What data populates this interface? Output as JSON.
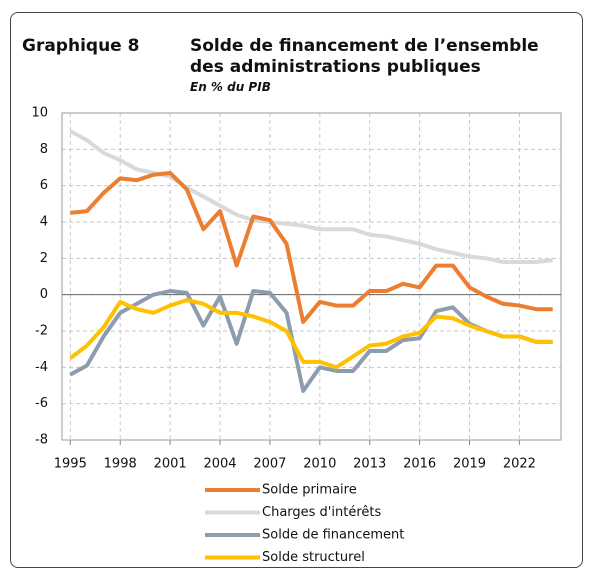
{
  "chart_data": {
    "type": "line",
    "label": "Graphique 8",
    "title": "Solde de financement de l’ensemble des administrations publiques",
    "subtitle": "En % du PIB",
    "x": [
      1995,
      1996,
      1997,
      1998,
      1999,
      2000,
      2001,
      2002,
      2003,
      2004,
      2005,
      2006,
      2007,
      2008,
      2009,
      2010,
      2011,
      2012,
      2013,
      2014,
      2015,
      2016,
      2017,
      2018,
      2019,
      2020,
      2021,
      2022,
      2023,
      2024
    ],
    "xlim": [
      1994.5,
      2024.5
    ],
    "xticks": [
      1995,
      1998,
      2001,
      2004,
      2007,
      2010,
      2013,
      2016,
      2019,
      2022
    ],
    "ylim": [
      -8,
      10
    ],
    "yticks": [
      -8,
      -6,
      -4,
      -2,
      0,
      2,
      4,
      6,
      8,
      10
    ],
    "grid": true,
    "legend": "bottom",
    "series": [
      {
        "name": "Solde primaire",
        "color": "#ed7d31",
        "values": [
          4.5,
          4.6,
          5.6,
          6.4,
          6.3,
          6.6,
          6.7,
          5.8,
          3.6,
          4.6,
          1.6,
          4.3,
          4.1,
          2.8,
          -1.5,
          -0.4,
          -0.6,
          -0.6,
          0.2,
          0.2,
          0.6,
          0.4,
          1.6,
          1.6,
          0.4,
          -0.1,
          -0.5,
          -0.6,
          -0.8,
          -0.8
        ]
      },
      {
        "name": "Charges d'intérêts",
        "color": "#d9d9d9",
        "values": [
          9.0,
          8.5,
          7.8,
          7.4,
          6.9,
          6.7,
          6.5,
          5.9,
          5.4,
          4.9,
          4.4,
          4.1,
          4.0,
          3.9,
          3.8,
          3.6,
          3.6,
          3.6,
          3.3,
          3.2,
          3.0,
          2.8,
          2.5,
          2.3,
          2.1,
          2.0,
          1.8,
          1.8,
          1.8,
          1.9
        ]
      },
      {
        "name": "Solde de financement",
        "color": "#8e9cb0",
        "values": [
          -4.4,
          -3.9,
          -2.3,
          -1.0,
          -0.5,
          0.0,
          0.2,
          0.1,
          -1.7,
          -0.1,
          -2.7,
          0.2,
          0.1,
          -1.0,
          -5.3,
          -4.0,
          -4.2,
          -4.2,
          -3.1,
          -3.1,
          -2.5,
          -2.4,
          -0.9,
          -0.7,
          -1.6,
          -2.0,
          -2.3,
          -2.3,
          -2.6,
          -2.6
        ]
      },
      {
        "name": "Solde structurel",
        "color": "#ffc000",
        "values": [
          -3.5,
          -2.8,
          -1.8,
          -0.4,
          -0.8,
          -1.0,
          -0.6,
          -0.3,
          -0.5,
          -1.0,
          -1.0,
          -1.2,
          -1.5,
          -2.0,
          -3.7,
          -3.7,
          -4.0,
          -3.4,
          -2.8,
          -2.7,
          -2.3,
          -2.1,
          -1.2,
          -1.3,
          -1.7,
          -2.0,
          -2.3,
          -2.3,
          -2.6,
          -2.6
        ]
      }
    ]
  }
}
